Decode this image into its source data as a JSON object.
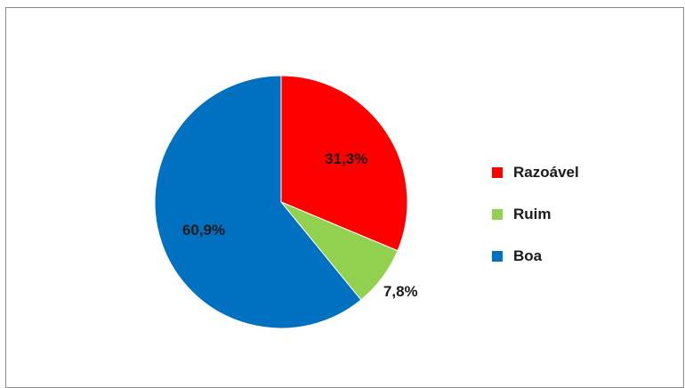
{
  "chart_data": {
    "type": "pie",
    "title": "",
    "slices": [
      {
        "label": "Razoável",
        "value": 31.3,
        "value_label": "31,3%",
        "color": "#ff0000"
      },
      {
        "label": "Ruim",
        "value": 7.8,
        "value_label": "7,8%",
        "color": "#92d050"
      },
      {
        "label": "Boa",
        "value": 60.9,
        "value_label": "60,9%",
        "color": "#0070c0"
      }
    ],
    "start_angle": "12 o'clock",
    "direction": "clockwise",
    "legend_position": "right"
  },
  "legend": {
    "items": [
      {
        "label": "Razoável",
        "color": "#ff0000"
      },
      {
        "label": "Ruim",
        "color": "#92d050"
      },
      {
        "label": "Boa",
        "color": "#0070c0"
      }
    ]
  }
}
